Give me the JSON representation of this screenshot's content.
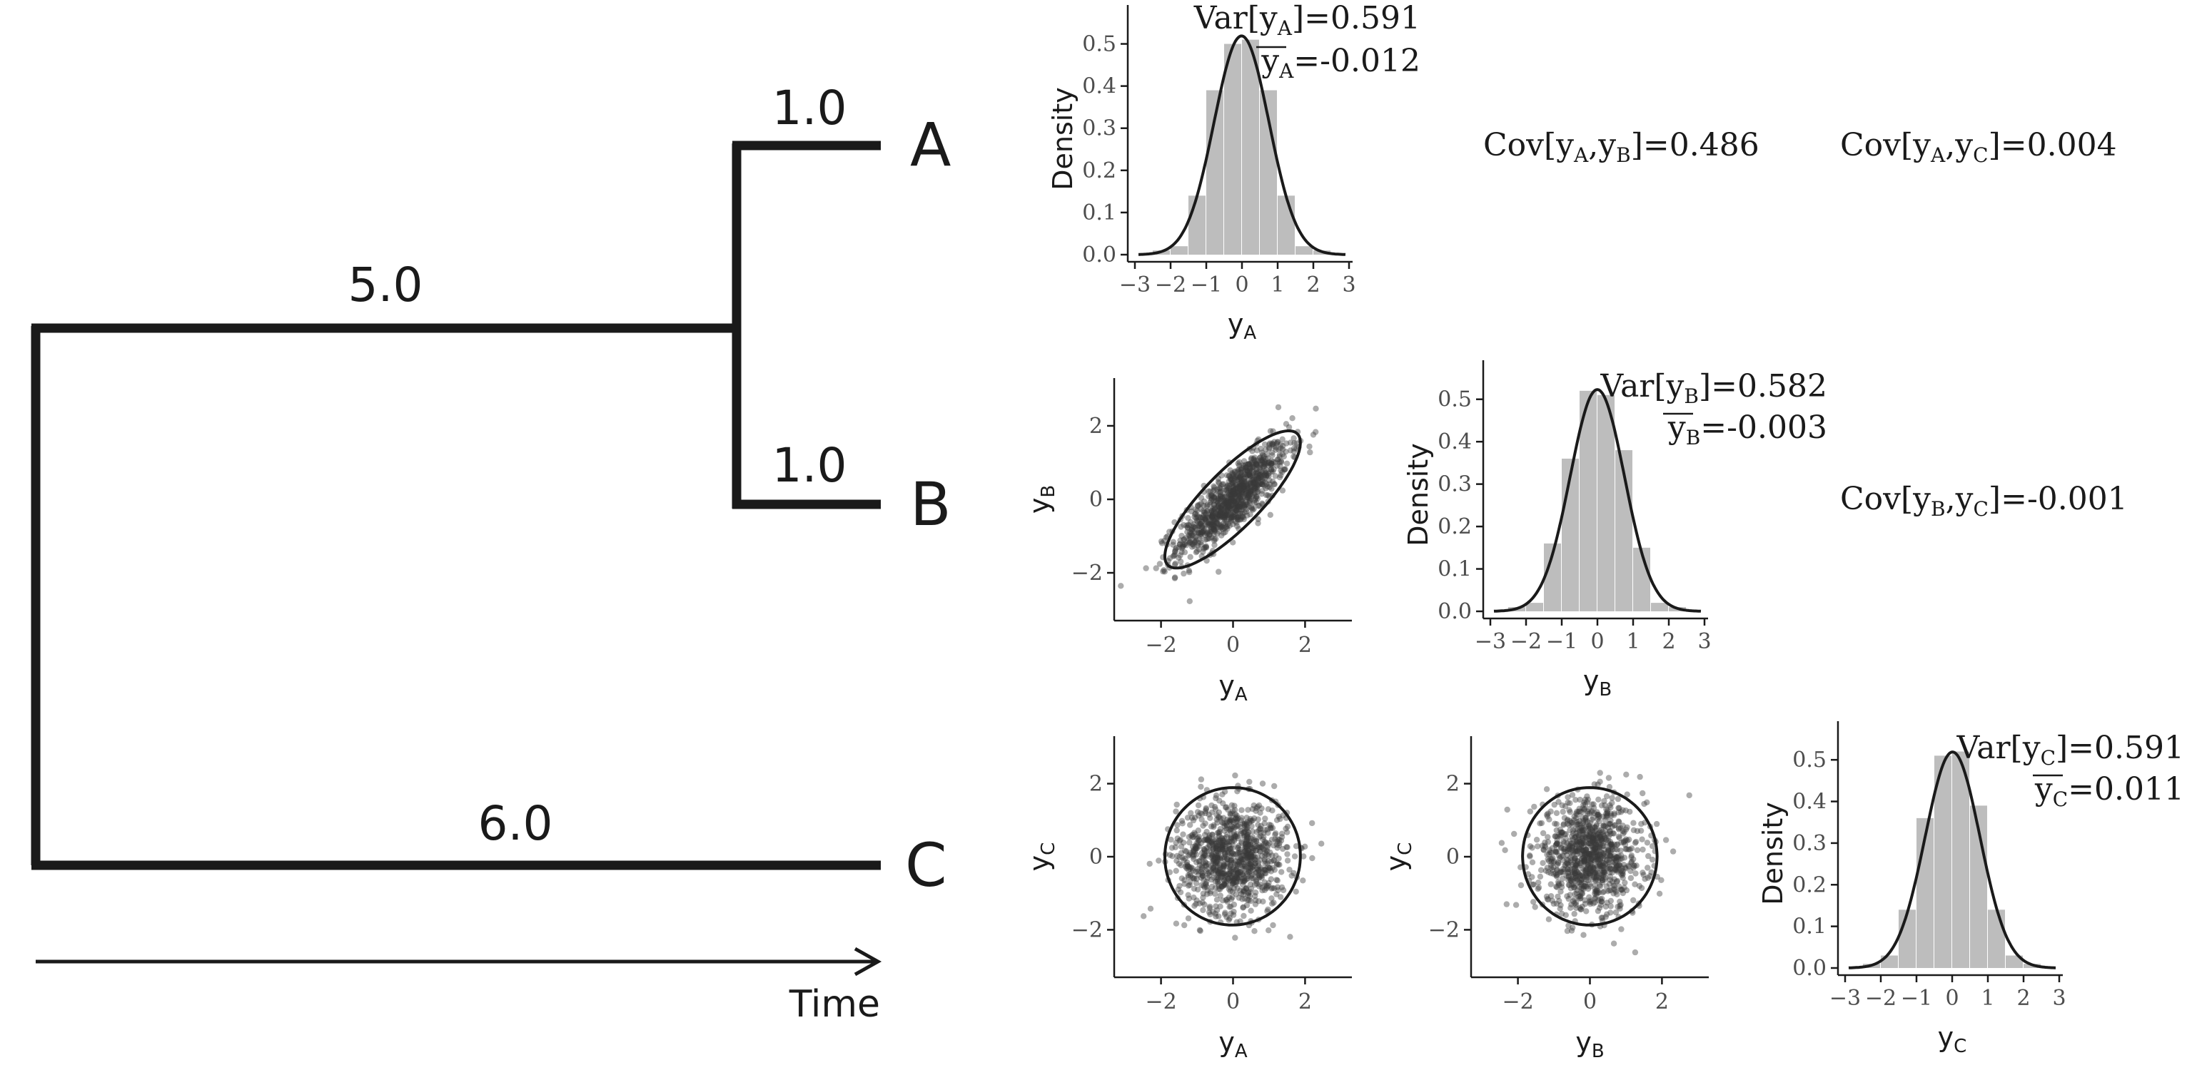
{
  "tree": {
    "tips": [
      "A",
      "B",
      "C"
    ],
    "branch_lengths": {
      "internal": "5.0",
      "to_A": "1.0",
      "to_B": "1.0",
      "to_C": "6.0"
    },
    "time_label": "Time"
  },
  "colors": {
    "ink": "#1a1a1a",
    "bars": "#bdbdbd",
    "points": "#3a3a3a",
    "tree": "#1a1a1a"
  },
  "stats": {
    "var_A": "Var[yₐ]=0.591",
    "var_A_parts": {
      "pre": "Var[y",
      "sub": "A",
      "post": "]=0.591"
    },
    "mean_A_parts": {
      "pre": "y",
      "sub": "A",
      "post": "=-0.012"
    },
    "var_B_parts": {
      "pre": "Var[y",
      "sub": "B",
      "post": "]=0.582"
    },
    "mean_B_parts": {
      "pre": "y",
      "sub": "B",
      "post": "=-0.003"
    },
    "var_C_parts": {
      "pre": "Var[y",
      "sub": "C",
      "post": "]=0.591"
    },
    "mean_C_parts": {
      "pre": "y",
      "sub": "C",
      "post": "=0.011"
    },
    "cov_AB_parts": {
      "pre": "Cov[y",
      "s1": "A",
      "mid": ",y",
      "s2": "B",
      "post": "]=0.486"
    },
    "cov_AC_parts": {
      "pre": "Cov[y",
      "s1": "A",
      "mid": ",y",
      "s2": "C",
      "post": "]=0.004"
    },
    "cov_BC_parts": {
      "pre": "Cov[y",
      "s1": "B",
      "mid": ",y",
      "s2": "C",
      "post": "]=-0.001"
    }
  },
  "chart_data": [
    {
      "type": "bar",
      "panel": "hist-A",
      "ylabel": "Density",
      "xlabel": "yA",
      "xlabel_parts": {
        "main": "y",
        "sub": "A"
      },
      "bin_edges": [
        -2.5,
        -2.0,
        -1.5,
        -1.0,
        -0.5,
        0.0,
        0.5,
        1.0,
        1.5,
        2.0,
        2.5
      ],
      "values": [
        0.01,
        0.02,
        0.14,
        0.39,
        0.5,
        0.51,
        0.39,
        0.14,
        0.02,
        0.01
      ],
      "curve": {
        "kind": "normal_density",
        "mean": -0.012,
        "variance": 0.591
      },
      "xlim": [
        -3,
        3
      ],
      "ylim": [
        0,
        0.55
      ],
      "xticks": [
        "−3",
        "−2",
        "−1",
        "0",
        "1",
        "2",
        "3"
      ],
      "yticks": [
        "0.0",
        "0.1",
        "0.2",
        "0.3",
        "0.4",
        "0.5"
      ]
    },
    {
      "type": "bar",
      "panel": "hist-B",
      "ylabel": "Density",
      "xlabel": "yB",
      "xlabel_parts": {
        "main": "y",
        "sub": "B"
      },
      "bin_edges": [
        -2.5,
        -2.0,
        -1.5,
        -1.0,
        -0.5,
        0.0,
        0.5,
        1.0,
        1.5,
        2.0,
        2.5
      ],
      "values": [
        0.01,
        0.02,
        0.16,
        0.36,
        0.52,
        0.51,
        0.38,
        0.15,
        0.02,
        0.01
      ],
      "curve": {
        "kind": "normal_density",
        "mean": -0.003,
        "variance": 0.582
      },
      "xlim": [
        -3,
        3
      ],
      "ylim": [
        0,
        0.55
      ],
      "xticks": [
        "−3",
        "−2",
        "−1",
        "0",
        "1",
        "2",
        "3"
      ],
      "yticks": [
        "0.0",
        "0.1",
        "0.2",
        "0.3",
        "0.4",
        "0.5"
      ]
    },
    {
      "type": "bar",
      "panel": "hist-C",
      "ylabel": "Density",
      "xlabel": "yC",
      "xlabel_parts": {
        "main": "y",
        "sub": "C"
      },
      "bin_edges": [
        -2.5,
        -2.0,
        -1.5,
        -1.0,
        -0.5,
        0.0,
        0.5,
        1.0,
        1.5,
        2.0,
        2.5
      ],
      "values": [
        0.01,
        0.03,
        0.14,
        0.36,
        0.51,
        0.52,
        0.39,
        0.14,
        0.03,
        0.01
      ],
      "curve": {
        "kind": "normal_density",
        "mean": 0.011,
        "variance": 0.591
      },
      "xlim": [
        -3,
        3
      ],
      "ylim": [
        0,
        0.55
      ],
      "xticks": [
        "−3",
        "−2",
        "−1",
        "0",
        "1",
        "2",
        "3"
      ],
      "yticks": [
        "0.0",
        "0.1",
        "0.2",
        "0.3",
        "0.4",
        "0.5"
      ]
    },
    {
      "type": "scatter",
      "panel": "scatter-AB",
      "xlabel": "yA",
      "ylabel": "yB",
      "xlabel_parts": {
        "main": "y",
        "sub": "A"
      },
      "ylabel_parts": {
        "main": "y",
        "sub": "B"
      },
      "n_points": 1000,
      "covariance": [
        [
          0.591,
          0.486
        ],
        [
          0.486,
          0.582
        ]
      ],
      "means": [
        -0.012,
        -0.003
      ],
      "ellipse": "95% confidence ellipse",
      "xlim": [
        -3.3,
        3.3
      ],
      "ylim": [
        -3.3,
        3.3
      ],
      "xticks": [
        "−2",
        "0",
        "2"
      ],
      "yticks": [
        "−2",
        "0",
        "2"
      ]
    },
    {
      "type": "scatter",
      "panel": "scatter-AC",
      "xlabel": "yA",
      "ylabel": "yC",
      "xlabel_parts": {
        "main": "y",
        "sub": "A"
      },
      "ylabel_parts": {
        "main": "y",
        "sub": "C"
      },
      "n_points": 1000,
      "covariance": [
        [
          0.591,
          0.004
        ],
        [
          0.004,
          0.591
        ]
      ],
      "means": [
        -0.012,
        0.011
      ],
      "ellipse": "95% confidence ellipse",
      "xlim": [
        -3.3,
        3.3
      ],
      "ylim": [
        -3.3,
        3.3
      ],
      "xticks": [
        "−2",
        "0",
        "2"
      ],
      "yticks": [
        "−2",
        "0",
        "2"
      ]
    },
    {
      "type": "scatter",
      "panel": "scatter-BC",
      "xlabel": "yB",
      "ylabel": "yC",
      "xlabel_parts": {
        "main": "y",
        "sub": "B"
      },
      "ylabel_parts": {
        "main": "y",
        "sub": "C"
      },
      "n_points": 1000,
      "covariance": [
        [
          0.582,
          -0.001
        ],
        [
          -0.001,
          0.591
        ]
      ],
      "means": [
        -0.003,
        0.011
      ],
      "ellipse": "95% confidence ellipse",
      "xlim": [
        -3.3,
        3.3
      ],
      "ylim": [
        -3.3,
        3.3
      ],
      "xticks": [
        "−2",
        "0",
        "2"
      ],
      "yticks": [
        "−2",
        "0",
        "2"
      ]
    }
  ]
}
